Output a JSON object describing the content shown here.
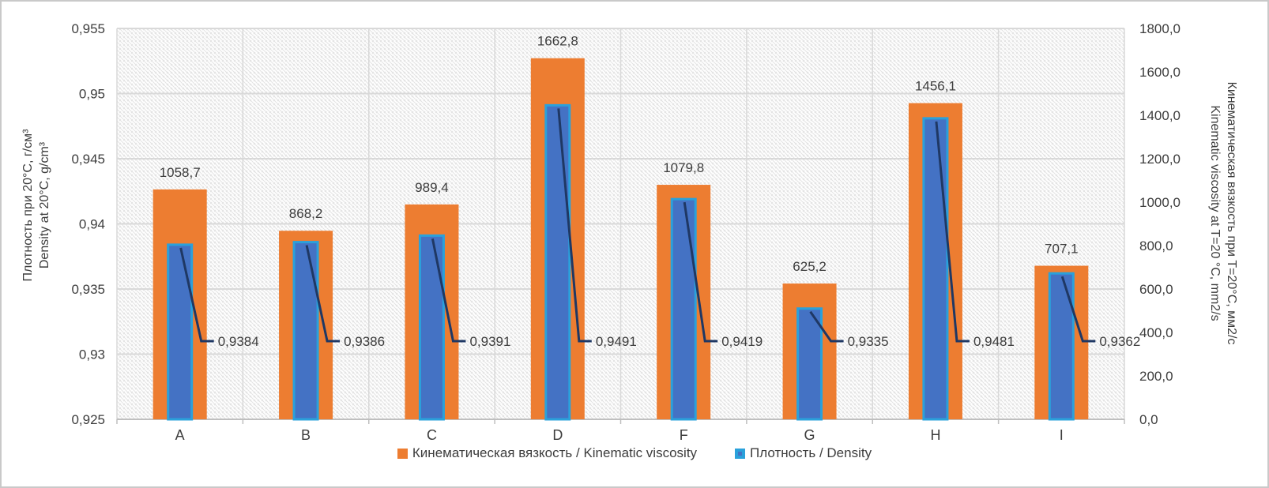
{
  "chart_data": {
    "type": "bar",
    "categories": [
      "A",
      "B",
      "C",
      "D",
      "F",
      "G",
      "H",
      "I"
    ],
    "series": [
      {
        "name": "Кинематическая вязкость / Kinematic viscosity",
        "axis": "right",
        "color": "#ED7D31",
        "values": [
          1058.7,
          868.2,
          989.4,
          1662.8,
          1079.8,
          625.2,
          1456.1,
          707.1
        ],
        "value_labels": [
          "1058,7",
          "868,2",
          "989,4",
          "1662,8",
          "1079,8",
          "625,2",
          "1456,1",
          "707,1"
        ]
      },
      {
        "name": "Плотность / Density",
        "axis": "left",
        "color": "#4472C4",
        "border_color": "#2AA1DB",
        "values": [
          0.9384,
          0.9386,
          0.9391,
          0.9491,
          0.9419,
          0.9335,
          0.9481,
          0.9362
        ],
        "value_labels": [
          "0,9384",
          "0,9386",
          "0,9391",
          "0,9491",
          "0,9419",
          "0,9335",
          "0,9481",
          "0,9362"
        ]
      }
    ],
    "left_axis": {
      "title_line1": "Плотность при 20°C, г/см³",
      "title_line2": "Density at 20°C, g/cm³",
      "min": 0.925,
      "max": 0.955,
      "step": 0.005,
      "tick_labels": [
        "0,955",
        "0,95",
        "0,945",
        "0,94",
        "0,935",
        "0,93",
        "0,925"
      ]
    },
    "right_axis": {
      "title_line1": "Кинематическая вязкость при T=20°C, мм2/с",
      "title_line2": "Kinematic viscosity at T=20 °C, mm2/s",
      "min": 0,
      "max": 1800,
      "step": 200,
      "tick_labels": [
        "1800,0",
        "1600,0",
        "1400,0",
        "1200,0",
        "1000,0",
        "800,0",
        "600,0",
        "400,0",
        "200,0",
        "0,0"
      ]
    },
    "legend": [
      {
        "label": "Кинематическая вязкость / Kinematic viscosity"
      },
      {
        "label": "Плотность / Density"
      }
    ],
    "grid": true,
    "legend_position": "bottom",
    "colors": {
      "leader_line": "#1F3864",
      "gridline": "#D9D9D9",
      "hatch": "#E2E2E2",
      "axis_line": "#BFBFBF",
      "text": "#3D3D3D"
    }
  }
}
